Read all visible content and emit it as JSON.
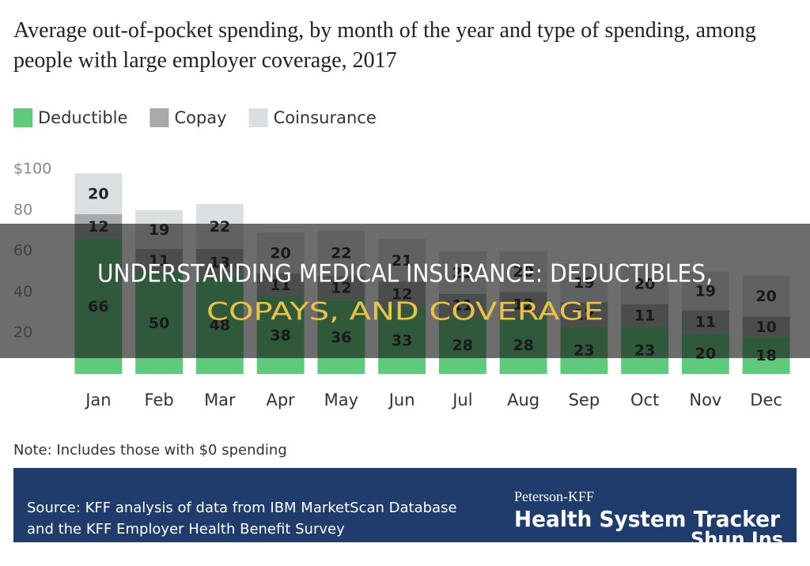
{
  "chart_data": {
    "type": "stacked-bar",
    "title": "Average out-of-pocket spending, by month of the year and type of spending, among people with large employer coverage, 2017",
    "categories": [
      "Jan",
      "Feb",
      "Mar",
      "Apr",
      "May",
      "Jun",
      "Jul",
      "Aug",
      "Sep",
      "Oct",
      "Nov",
      "Dec"
    ],
    "series": [
      {
        "name": "Deductible",
        "color": "#5fc97c",
        "values": [
          66,
          50,
          48,
          38,
          36,
          33,
          28,
          28,
          23,
          23,
          20,
          18
        ]
      },
      {
        "name": "Copay",
        "color": "#a7aaab",
        "values": [
          12,
          11,
          13,
          11,
          12,
          12,
          11,
          12,
          12,
          11,
          11,
          10
        ]
      },
      {
        "name": "Coinsurance",
        "color": "#dcdfe2",
        "values": [
          20,
          19,
          22,
          20,
          22,
          21,
          21,
          20,
          19,
          20,
          19,
          20
        ]
      }
    ],
    "ylim": [
      0,
      100
    ],
    "yticks": [
      20,
      40,
      60,
      80,
      {
        "value": 100,
        "label": "$100"
      }
    ],
    "grid": false
  },
  "note": "Note: Includes those with $0 spending",
  "source": [
    "Source: KFF analysis of data from IBM MarketScan Database",
    "and the KFF Employer Health Benefit Survey"
  ],
  "brand": {
    "top": "Peterson-KFF",
    "main": "Health System Tracker"
  },
  "watermark": "Shun Ins",
  "overlay_title": [
    "UNDERSTANDING MEDICAL INSURANCE: DEDUCTIBLES,",
    "COPAYS, AND COVERAGE"
  ]
}
